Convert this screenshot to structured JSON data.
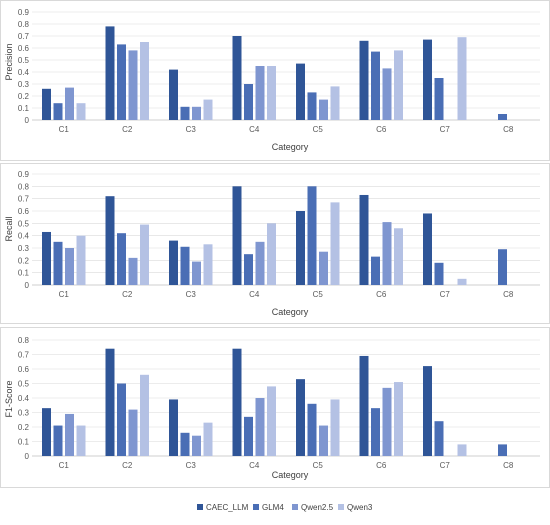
{
  "colors": {
    "CAEC_LLM": "#2f5597",
    "GLM4": "#4a6eb5",
    "Qwen2.5": "#7f96d0",
    "Qwen3": "#b4c1e4",
    "gridline": "#d9d9d9",
    "axis": "#bfbfbf"
  },
  "legend": [
    {
      "name": "CAEC_LLM",
      "color": "#2f5597"
    },
    {
      "name": "GLM4",
      "color": "#4a6eb5"
    },
    {
      "name": "Qwen2.5",
      "color": "#7f96d0"
    },
    {
      "name": "Qwen3",
      "color": "#b4c1e4"
    }
  ],
  "chart_data": [
    {
      "type": "bar",
      "title": "",
      "xlabel": "Category",
      "ylabel": "Precision",
      "ylim": [
        0,
        0.9
      ],
      "yticks": [
        "0",
        "0.1",
        "0.2",
        "0.3",
        "0.4",
        "0.5",
        "0.6",
        "0.7",
        "0.8",
        "0.9"
      ],
      "grid": true,
      "categories": [
        "C1",
        "C2",
        "C3",
        "C4",
        "C5",
        "C6",
        "C7",
        "C8"
      ],
      "series": [
        {
          "name": "CAEC_LLM",
          "values": [
            0.26,
            0.78,
            0.42,
            0.7,
            0.47,
            0.66,
            0.67,
            0.0
          ]
        },
        {
          "name": "GLM4",
          "values": [
            0.14,
            0.63,
            0.11,
            0.3,
            0.23,
            0.57,
            0.35,
            0.05
          ]
        },
        {
          "name": "Qwen2.5",
          "values": [
            0.27,
            0.58,
            0.11,
            0.45,
            0.17,
            0.43,
            0.0,
            0.0
          ]
        },
        {
          "name": "Qwen3",
          "values": [
            0.14,
            0.65,
            0.17,
            0.45,
            0.28,
            0.58,
            0.69,
            0.0
          ]
        }
      ]
    },
    {
      "type": "bar",
      "title": "",
      "xlabel": "Category",
      "ylabel": "Recall",
      "ylim": [
        0,
        0.9
      ],
      "yticks": [
        "0",
        "0.1",
        "0.2",
        "0.3",
        "0.4",
        "0.5",
        "0.6",
        "0.7",
        "0.8",
        "0.9"
      ],
      "grid": true,
      "categories": [
        "C1",
        "C2",
        "C3",
        "C4",
        "C5",
        "C6",
        "C7",
        "C8"
      ],
      "series": [
        {
          "name": "CAEC_LLM",
          "values": [
            0.43,
            0.72,
            0.36,
            0.8,
            0.6,
            0.73,
            0.58,
            0.0
          ]
        },
        {
          "name": "GLM4",
          "values": [
            0.35,
            0.42,
            0.31,
            0.25,
            0.8,
            0.23,
            0.18,
            0.29
          ]
        },
        {
          "name": "Qwen2.5",
          "values": [
            0.3,
            0.22,
            0.19,
            0.35,
            0.27,
            0.51,
            0.0,
            0.0
          ]
        },
        {
          "name": "Qwen3",
          "values": [
            0.4,
            0.49,
            0.33,
            0.5,
            0.67,
            0.46,
            0.05,
            0.0
          ]
        }
      ]
    },
    {
      "type": "bar",
      "title": "",
      "xlabel": "Category",
      "ylabel": "F1-Score",
      "ylim": [
        0,
        0.8
      ],
      "yticks": [
        "0",
        "0.1",
        "0.2",
        "0.3",
        "0.4",
        "0.5",
        "0.6",
        "0.7",
        "0.8"
      ],
      "grid": true,
      "categories": [
        "C1",
        "C2",
        "C3",
        "C4",
        "C5",
        "C6",
        "C7",
        "C8"
      ],
      "series": [
        {
          "name": "CAEC_LLM",
          "values": [
            0.33,
            0.74,
            0.39,
            0.74,
            0.53,
            0.69,
            0.62,
            0.0
          ]
        },
        {
          "name": "GLM4",
          "values": [
            0.21,
            0.5,
            0.16,
            0.27,
            0.36,
            0.33,
            0.24,
            0.08
          ]
        },
        {
          "name": "Qwen2.5",
          "values": [
            0.29,
            0.32,
            0.14,
            0.4,
            0.21,
            0.47,
            0.0,
            0.0
          ]
        },
        {
          "name": "Qwen3",
          "values": [
            0.21,
            0.56,
            0.23,
            0.48,
            0.39,
            0.51,
            0.08,
            0.0
          ]
        }
      ]
    }
  ]
}
